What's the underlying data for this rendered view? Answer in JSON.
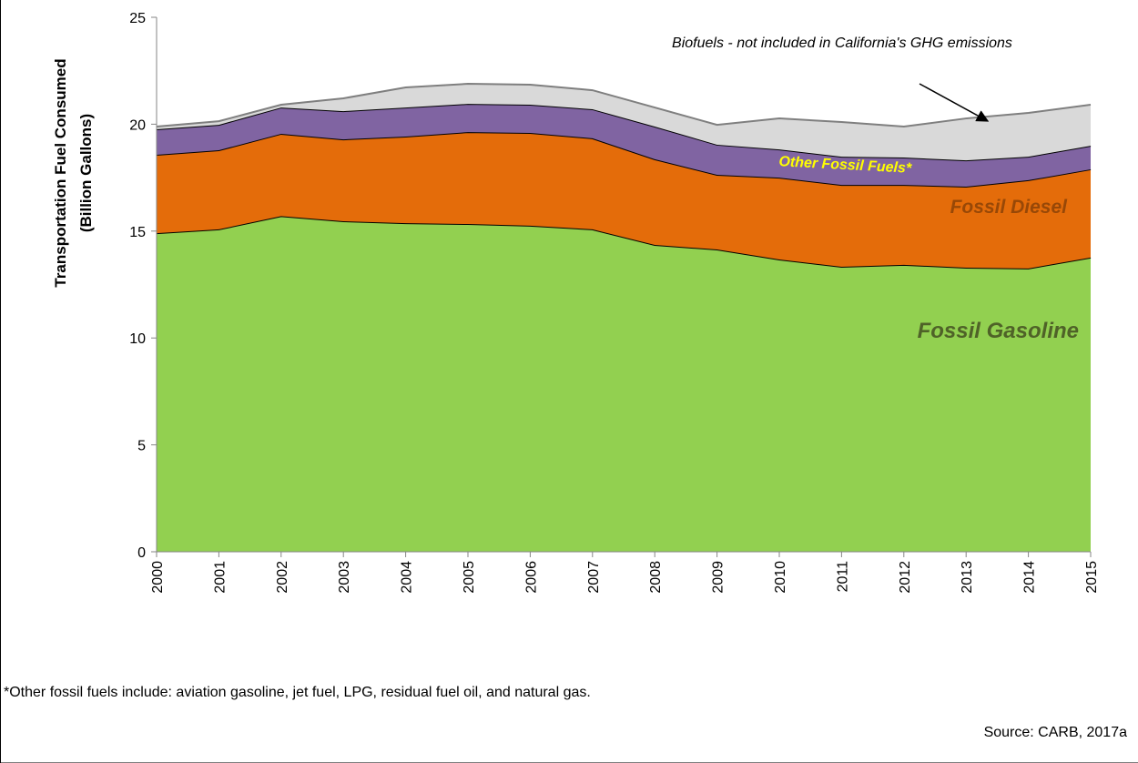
{
  "chart_data": {
    "type": "stacked_area",
    "y_label": [
      "Transportation Fuel Consumed",
      "(Billion Gallons)"
    ],
    "categories": [
      "2000",
      "2001",
      "2002",
      "2003",
      "2004",
      "2005",
      "2006",
      "2007",
      "2008",
      "2009",
      "2010",
      "2011",
      "2012",
      "2013",
      "2014",
      "2015"
    ],
    "series": [
      {
        "name": "Fossil Gasoline",
        "color": "#92d050",
        "label_color": "#4f6228",
        "line_color": "#000000",
        "values": [
          14.9,
          15.08,
          15.7,
          15.46,
          15.37,
          15.33,
          15.25,
          15.08,
          14.35,
          14.14,
          13.67,
          13.33,
          13.42,
          13.29,
          13.25,
          13.76
        ]
      },
      {
        "name": "Fossil Diesel",
        "color": "#e46c0a",
        "label_color": "#984807",
        "line_color": "#000000",
        "values": [
          3.67,
          3.7,
          3.85,
          3.83,
          4.05,
          4.3,
          4.34,
          4.26,
          4.01,
          3.49,
          3.83,
          3.83,
          3.74,
          3.79,
          4.13,
          4.13
        ]
      },
      {
        "name": "Other Fossil Fuels*",
        "color": "#8064a2",
        "label_color": "#ffff00",
        "line_color": "#000000",
        "values": [
          1.19,
          1.19,
          1.23,
          1.32,
          1.36,
          1.32,
          1.32,
          1.36,
          1.53,
          1.41,
          1.32,
          1.32,
          1.28,
          1.23,
          1.1,
          1.1
        ]
      },
      {
        "name": "Biofuels - not included in California's GHG emissions",
        "color": "#d9d9d9",
        "line_color": "#7f7f7f",
        "values": [
          0.13,
          0.17,
          0.13,
          0.6,
          0.94,
          0.94,
          0.94,
          0.89,
          0.89,
          0.93,
          1.45,
          1.62,
          1.45,
          1.96,
          2.05,
          1.92
        ]
      }
    ],
    "ylim": [
      0,
      25
    ],
    "yticks": [
      0,
      5,
      10,
      15,
      20,
      25
    ],
    "grid": false,
    "footnote": "*Other fossil fuels include: aviation gasoline, jet fuel, LPG, residual fuel oil, and natural gas.",
    "source": "Source: CARB, 2017a"
  }
}
